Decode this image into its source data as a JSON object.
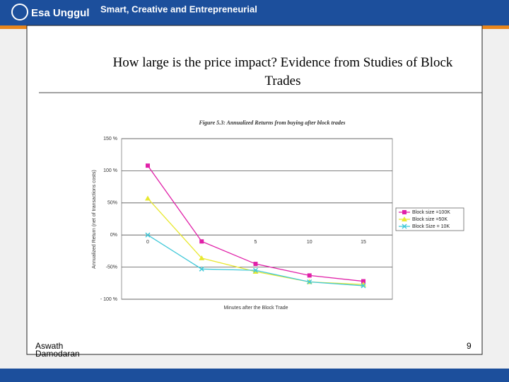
{
  "header": {
    "logo": "Esa Unggul",
    "tagline": "Smart, Creative and Entrepreneurial"
  },
  "slide": {
    "heading": "How large is the price impact? Evidence from Studies of Block Trades",
    "author": "Aswath Damodaran",
    "page": "9"
  },
  "chart_data": {
    "type": "line",
    "title": "Figure 5.3: Annualized Returns from buying after block trades",
    "x_label": "Minutes after the Block Trade",
    "y_label": "Annualized Return (net of transactions costs)",
    "categories": [
      "0",
      null,
      "5",
      "10",
      "15"
    ],
    "series": [
      {
        "name": "Block size =100K",
        "color": "#e020a8",
        "marker": "square",
        "values": [
          108,
          -10,
          -45,
          -63,
          -72
        ]
      },
      {
        "name": "Block size =50K",
        "color": "#e8e830",
        "marker": "triangle",
        "values": [
          57,
          -36,
          -57,
          -73,
          -77
        ]
      },
      {
        "name": "Block Size = 10K",
        "color": "#40c8d8",
        "marker": "x",
        "values": [
          0,
          -53,
          -55,
          -73,
          -79
        ]
      }
    ],
    "ylim": [
      -100,
      150
    ],
    "yticks": [
      {
        "value": -100,
        "label": "- 100 %"
      },
      {
        "value": -50,
        "label": "-50%"
      },
      {
        "value": 0,
        "label": "0%"
      },
      {
        "value": 50,
        "label": "50%"
      },
      {
        "value": 100,
        "label": "100 %"
      },
      {
        "value": 150,
        "label": "150 %"
      }
    ],
    "grid": true,
    "legend": "right"
  }
}
